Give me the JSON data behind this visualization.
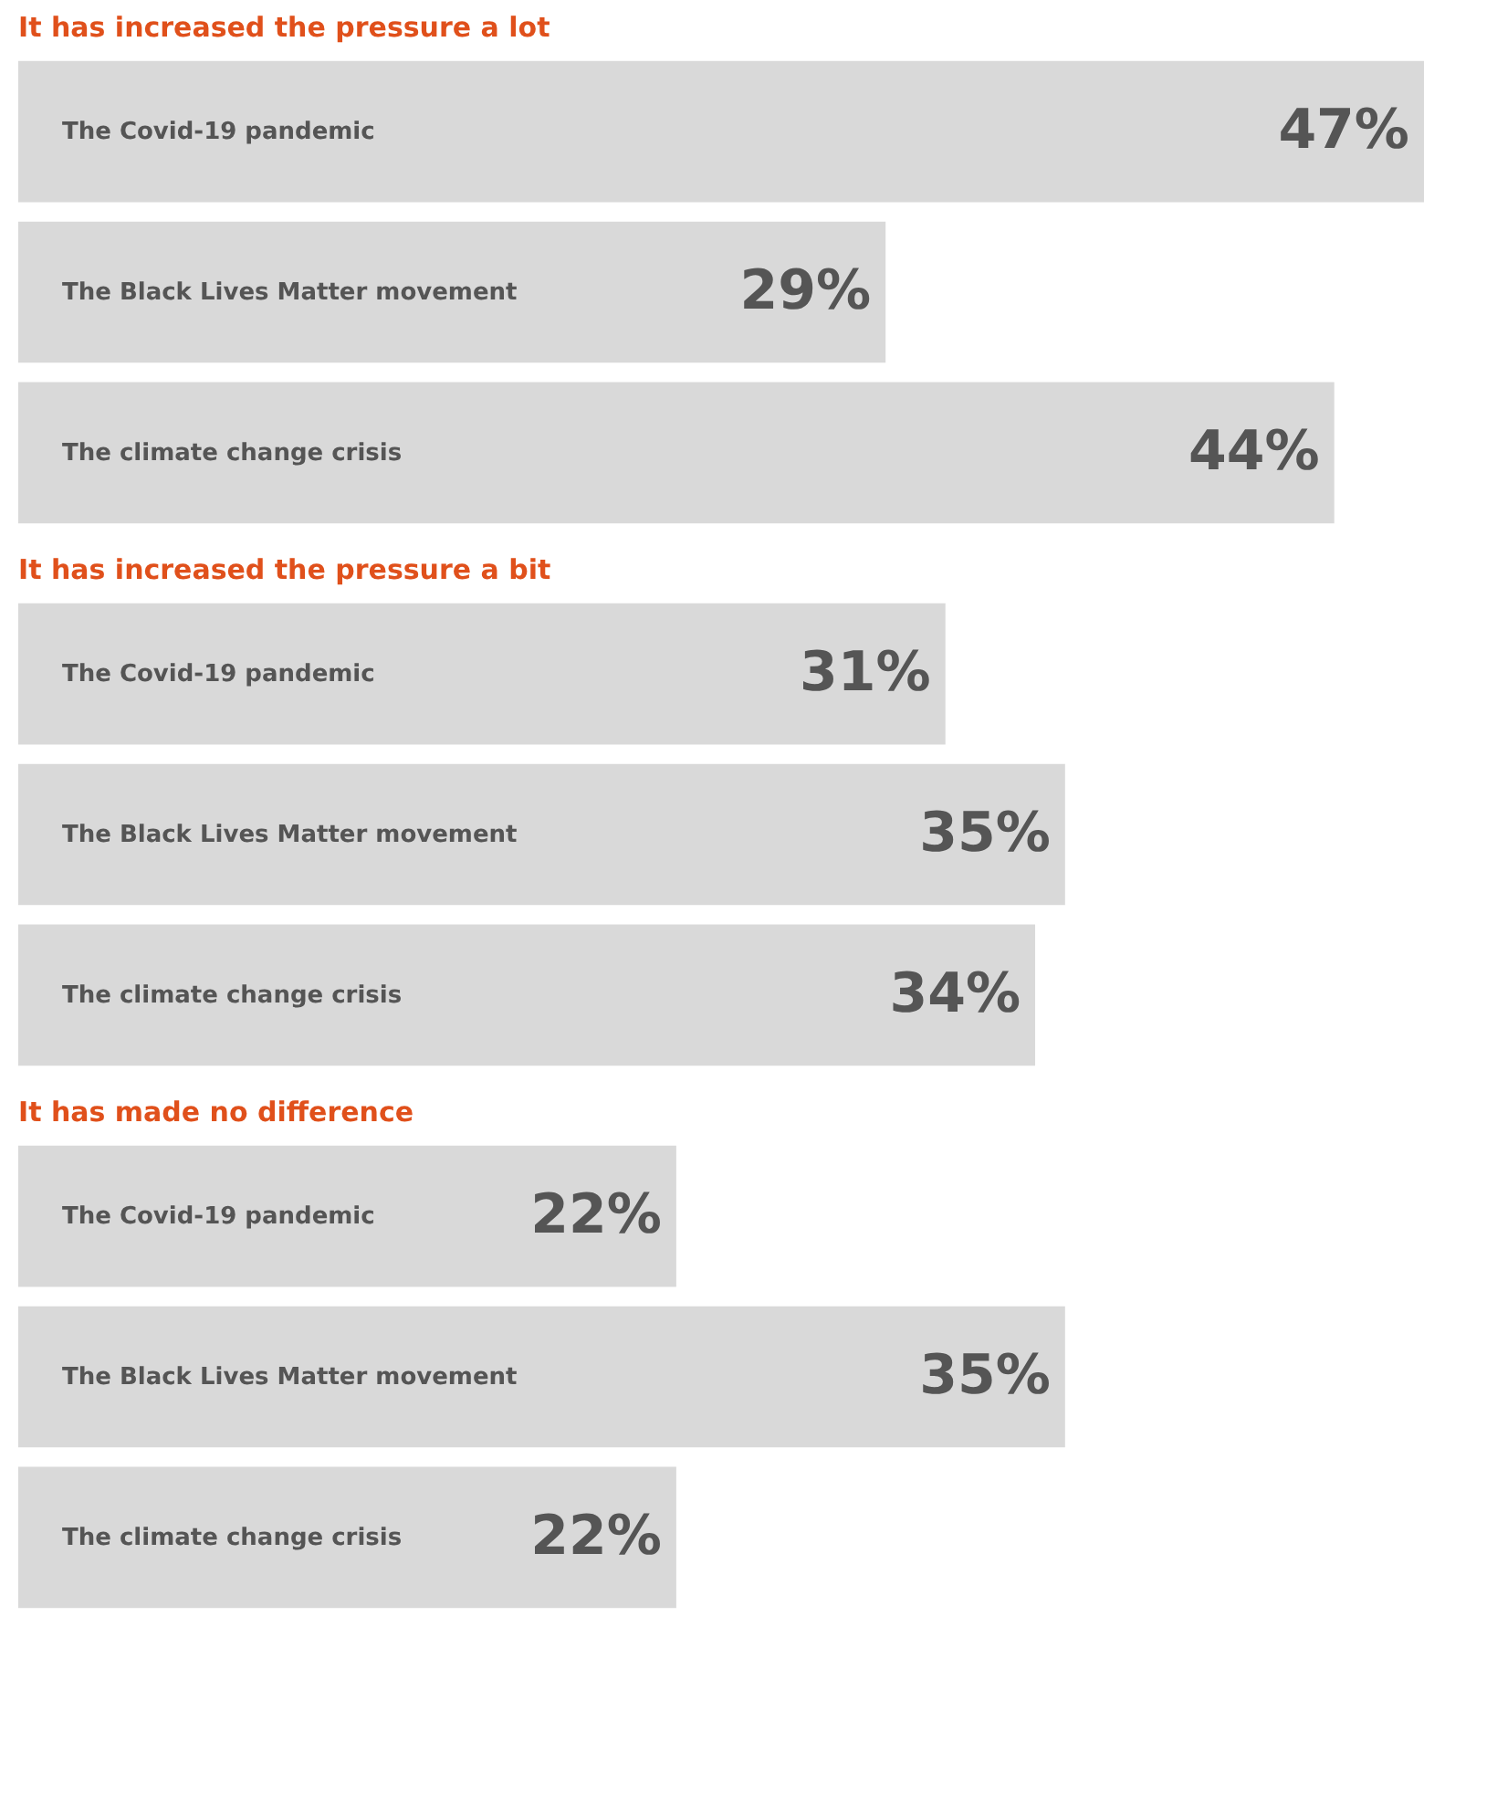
{
  "chart_data": [
    {
      "type": "bar",
      "orientation": "horizontal",
      "title": "It has increased the pressure a lot",
      "categories": [
        "The Covid-19 pandemic",
        "The Black Lives Matter movement",
        "The climate change crisis"
      ],
      "values": [
        47,
        29,
        44
      ],
      "value_labels": [
        "47%",
        "29%",
        "44%"
      ],
      "color": "#d9d9d9",
      "tick_labels": false
    },
    {
      "type": "bar",
      "orientation": "horizontal",
      "title": "It has increased the pressure a bit",
      "categories": [
        "The Covid-19 pandemic",
        "The Black Lives Matter movement",
        "The climate change crisis"
      ],
      "values": [
        31,
        35,
        34
      ],
      "value_labels": [
        "31%",
        "35%",
        "34%"
      ],
      "color": "#d9d9d9",
      "tick_labels": false
    },
    {
      "type": "bar",
      "orientation": "horizontal",
      "title": "It has made no difference",
      "categories": [
        "The Covid-19 pandemic",
        "The Black Lives Matter movement",
        "The climate change crisis"
      ],
      "values": [
        22,
        35,
        22
      ],
      "value_labels": [
        "22%",
        "35%",
        "22%"
      ],
      "color": "#d9d9d9",
      "tick_labels": false
    }
  ]
}
